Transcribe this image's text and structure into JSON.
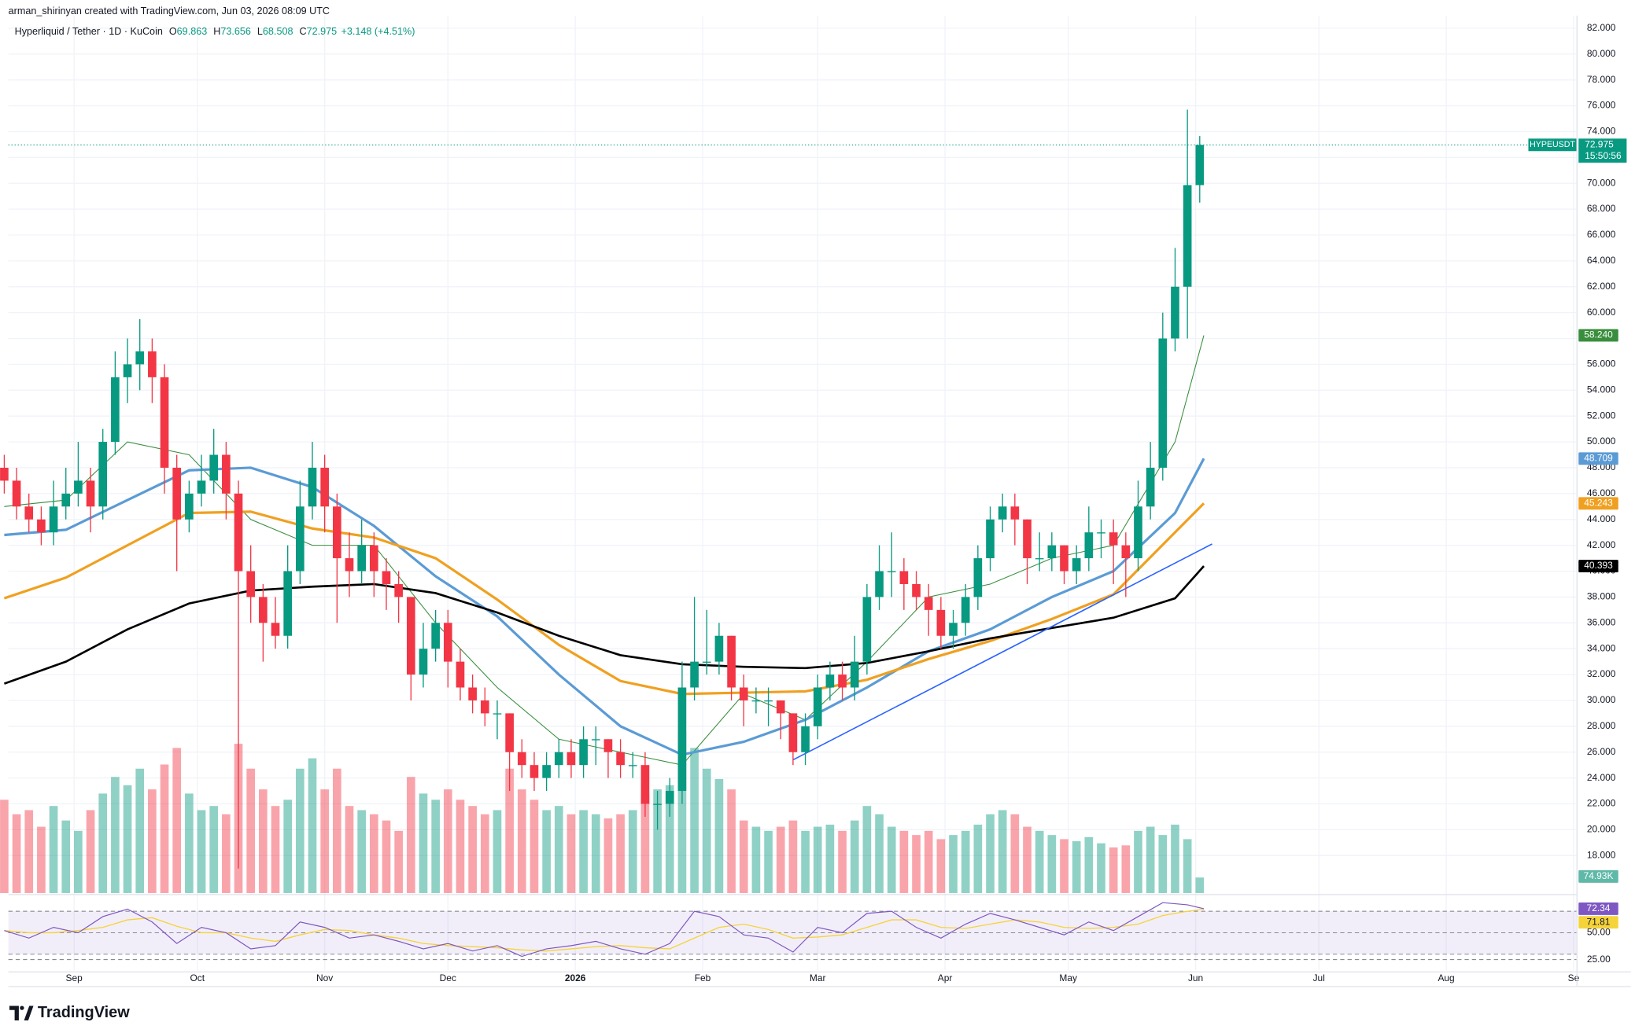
{
  "header": {
    "credit": "arman_shirinyan created with TradingView.com, Jun 03, 2026 08:09 UTC",
    "symbol": "Hyperliquid / Tether · 1D · KuCoin",
    "ohlc": [
      {
        "label": "O",
        "value": 69.863
      },
      {
        "label": "H",
        "value": 73.656
      },
      {
        "label": "L",
        "value": 68.508
      },
      {
        "label": "C",
        "value": 72.975
      }
    ],
    "change": "+3.148 (+4.51%)"
  },
  "chart_data": {
    "type": "candlestick",
    "symbol_name": "HYPEUSDT",
    "countdown": "15:50:56",
    "up_color": "#089981",
    "down_color": "#f23645",
    "x": [
      0,
      3,
      6,
      9,
      12,
      15,
      18,
      21,
      24,
      27,
      30,
      33,
      36,
      39,
      42,
      45,
      48,
      51,
      54,
      57,
      60,
      63,
      66,
      69,
      72,
      75,
      78,
      81,
      84,
      87,
      90,
      93,
      96,
      99,
      102,
      105,
      108,
      111,
      114,
      117,
      120,
      123,
      126,
      129,
      132,
      135,
      138,
      141,
      144,
      147,
      150,
      153,
      156,
      159,
      162,
      165,
      168,
      171,
      174,
      177,
      180,
      183,
      186,
      189,
      192,
      195,
      198,
      201,
      204,
      207,
      210,
      213,
      216,
      219,
      222,
      225,
      228,
      231,
      234,
      237,
      240,
      243,
      246,
      249,
      252,
      255,
      258,
      261,
      264,
      267,
      270,
      273,
      276,
      279,
      282,
      285,
      288,
      291
    ],
    "candles": [
      [
        48,
        49,
        46,
        47
      ],
      [
        47,
        48,
        44,
        45
      ],
      [
        45,
        46,
        43,
        44
      ],
      [
        44,
        45,
        42,
        43
      ],
      [
        43,
        47,
        42,
        45
      ],
      [
        45,
        48,
        44,
        46
      ],
      [
        46,
        50,
        45,
        47
      ],
      [
        47,
        48,
        43,
        45
      ],
      [
        45,
        51,
        44,
        50
      ],
      [
        50,
        57,
        49,
        55
      ],
      [
        55,
        58,
        53,
        56
      ],
      [
        56,
        59.5,
        54,
        57
      ],
      [
        57,
        58,
        53,
        55
      ],
      [
        55,
        56,
        46,
        48
      ],
      [
        48,
        49,
        40,
        44
      ],
      [
        44,
        47,
        43,
        46
      ],
      [
        46,
        49,
        45,
        47
      ],
      [
        47,
        51,
        46,
        49
      ],
      [
        49,
        50,
        44,
        46
      ],
      [
        46,
        47,
        17,
        40
      ],
      [
        40,
        42,
        36,
        38
      ],
      [
        38,
        39,
        33,
        36
      ],
      [
        36,
        38,
        34,
        35
      ],
      [
        35,
        42,
        34,
        40
      ],
      [
        40,
        47,
        39,
        45
      ],
      [
        45,
        50,
        44,
        48
      ],
      [
        48,
        49,
        43,
        45
      ],
      [
        45,
        46,
        36,
        41
      ],
      [
        41,
        43,
        38,
        40
      ],
      [
        40,
        44,
        39,
        42
      ],
      [
        42,
        43,
        38,
        40
      ],
      [
        40,
        41,
        37,
        39
      ],
      [
        39,
        40,
        36,
        38
      ],
      [
        38,
        38,
        30,
        32
      ],
      [
        32,
        36,
        31,
        34
      ],
      [
        34,
        37,
        33,
        36
      ],
      [
        36,
        37,
        31,
        33
      ],
      [
        33,
        34,
        30,
        31
      ],
      [
        31,
        32,
        29,
        30
      ],
      [
        30,
        31,
        28,
        29
      ],
      [
        29,
        30,
        27,
        29
      ],
      [
        29,
        29,
        23,
        26
      ],
      [
        26,
        27,
        24,
        25
      ],
      [
        25,
        26,
        23,
        24
      ],
      [
        24,
        26,
        23,
        25
      ],
      [
        25,
        27,
        24,
        26
      ],
      [
        26,
        27,
        24,
        25
      ],
      [
        25,
        28,
        24,
        27
      ],
      [
        27,
        28,
        25,
        27
      ],
      [
        27,
        27,
        24,
        26
      ],
      [
        26,
        27,
        24,
        25
      ],
      [
        25,
        26,
        24,
        25
      ],
      [
        25,
        26,
        21,
        22
      ],
      [
        22,
        23,
        20,
        22
      ],
      [
        22,
        24,
        21,
        23
      ],
      [
        23,
        33,
        22,
        31
      ],
      [
        31,
        38,
        30,
        33
      ],
      [
        33,
        37,
        32,
        33
      ],
      [
        33,
        36,
        32,
        35
      ],
      [
        35,
        35,
        30,
        31
      ],
      [
        31,
        32,
        28,
        30
      ],
      [
        30,
        31,
        29,
        30
      ],
      [
        30,
        31,
        28,
        30
      ],
      [
        30,
        30,
        27,
        29
      ],
      [
        29,
        29,
        25,
        26
      ],
      [
        26,
        29,
        25,
        28
      ],
      [
        28,
        32,
        27,
        31
      ],
      [
        31,
        33,
        30,
        32
      ],
      [
        32,
        33,
        30,
        31
      ],
      [
        31,
        35,
        30,
        33
      ],
      [
        33,
        39,
        32,
        38
      ],
      [
        38,
        42,
        37,
        40
      ],
      [
        40,
        43,
        38,
        40
      ],
      [
        40,
        41,
        37,
        39
      ],
      [
        39,
        40,
        37,
        38
      ],
      [
        38,
        39,
        35,
        37
      ],
      [
        37,
        38,
        34,
        35
      ],
      [
        35,
        37,
        34,
        36
      ],
      [
        36,
        39,
        35,
        38
      ],
      [
        38,
        42,
        37,
        41
      ],
      [
        41,
        45,
        40,
        44
      ],
      [
        44,
        46,
        43,
        45
      ],
      [
        45,
        46,
        42,
        44
      ],
      [
        44,
        44,
        39,
        41
      ],
      [
        41,
        43,
        40,
        41
      ],
      [
        41,
        43,
        40,
        42
      ],
      [
        42,
        42,
        39,
        40
      ],
      [
        40,
        42,
        39,
        41
      ],
      [
        41,
        45,
        40,
        43
      ],
      [
        43,
        44,
        41,
        43
      ],
      [
        43,
        44,
        39,
        42
      ],
      [
        42,
        43,
        38,
        41
      ],
      [
        41,
        47,
        40,
        45
      ],
      [
        45,
        50,
        44,
        48
      ],
      [
        48,
        60,
        47,
        58
      ],
      [
        58,
        65,
        57,
        62
      ],
      [
        62,
        75.7,
        58,
        69.863
      ],
      [
        69.863,
        73.656,
        68.508,
        72.975
      ]
    ],
    "xlim": [
      1,
      382.7
    ],
    "xticks": [
      {
        "value": 17,
        "label": "Sep"
      },
      {
        "value": 47,
        "label": "Oct"
      },
      {
        "value": 78,
        "label": "Nov"
      },
      {
        "value": 108,
        "label": "Dec"
      },
      {
        "value": 139,
        "label": "2026"
      },
      {
        "value": 170,
        "label": "Feb"
      },
      {
        "value": 198,
        "label": "Mar"
      },
      {
        "value": 229,
        "label": "Apr"
      },
      {
        "value": 259,
        "label": "May"
      },
      {
        "value": 290,
        "label": "Jun"
      },
      {
        "value": 320,
        "label": "Jul"
      },
      {
        "value": 351,
        "label": "Aug"
      },
      {
        "value": 382,
        "label": "Se"
      }
    ],
    "ylim": [
      15.1,
      82.97
    ],
    "yticks": [
      {
        "value": 18,
        "label": "18.000"
      },
      {
        "value": 20,
        "label": "20.000"
      },
      {
        "value": 22,
        "label": "22.000"
      },
      {
        "value": 24,
        "label": "24.000"
      },
      {
        "value": 26,
        "label": "26.000"
      },
      {
        "value": 28,
        "label": "28.000"
      },
      {
        "value": 30,
        "label": "30.000"
      },
      {
        "value": 32,
        "label": "32.000"
      },
      {
        "value": 34,
        "label": "34.000"
      },
      {
        "value": 36,
        "label": "36.000"
      },
      {
        "value": 38,
        "label": "38.000"
      },
      {
        "value": 40,
        "label": "40.000"
      },
      {
        "value": 42,
        "label": "42.000"
      },
      {
        "value": 44,
        "label": "44.000"
      },
      {
        "value": 46,
        "label": "46.000"
      },
      {
        "value": 48,
        "label": "48.000"
      },
      {
        "value": 50,
        "label": "50.000"
      },
      {
        "value": 52,
        "label": "52.000"
      },
      {
        "value": 54,
        "label": "54.000"
      },
      {
        "value": 56,
        "label": "56.000"
      },
      {
        "value": 58,
        "label": "58.000"
      },
      {
        "value": 60,
        "label": "60.000"
      },
      {
        "value": 62,
        "label": "62.000"
      },
      {
        "value": 64,
        "label": "64.000"
      },
      {
        "value": 66,
        "label": "66.000"
      },
      {
        "value": 68,
        "label": "68.000"
      },
      {
        "value": 70,
        "label": "70.000"
      },
      {
        "value": 72,
        "label": "72.000"
      },
      {
        "value": 74,
        "label": "74.000"
      },
      {
        "value": 76,
        "label": "76.000"
      },
      {
        "value": 78,
        "label": "78.000"
      },
      {
        "value": 80,
        "label": "80.000"
      },
      {
        "value": 82,
        "label": "82.000"
      }
    ],
    "grid": true,
    "volume": {
      "ylim": [
        0,
        1300
      ],
      "values": [
        450,
        380,
        400,
        320,
        420,
        350,
        300,
        400,
        480,
        560,
        520,
        600,
        500,
        620,
        700,
        480,
        400,
        420,
        380,
        720,
        600,
        500,
        420,
        450,
        600,
        650,
        500,
        600,
        420,
        400,
        380,
        350,
        300,
        560,
        480,
        450,
        500,
        450,
        420,
        380,
        400,
        600,
        500,
        450,
        400,
        420,
        380,
        400,
        380,
        360,
        380,
        400,
        480,
        500,
        520,
        780,
        700,
        600,
        550,
        500,
        350,
        320,
        300,
        320,
        350,
        300,
        320,
        330,
        300,
        350,
        420,
        380,
        320,
        300,
        280,
        300,
        260,
        280,
        300,
        330,
        380,
        400,
        380,
        320,
        300,
        280,
        260,
        250,
        270,
        240,
        220,
        230,
        300,
        320,
        280,
        330,
        260,
        74.93
      ],
      "value_label": "74.93K",
      "color": "#089981"
    },
    "ma_x": [
      0,
      15,
      30,
      45,
      60,
      75,
      90,
      105,
      120,
      135,
      150,
      165,
      180,
      195,
      210,
      225,
      240,
      255,
      270,
      285,
      292
    ],
    "ma": [
      {
        "color": "#388e3c",
        "width": 0.8,
        "values": [
          45,
          45.5,
          50,
          49,
          44,
          42,
          42,
          36,
          31,
          27,
          26,
          25,
          30.5,
          28.5,
          33,
          38,
          39,
          41,
          42,
          50,
          58.24
        ],
        "value_label": "58.240"
      },
      {
        "color": "#5b9bd5",
        "width": 2.4,
        "values": [
          42.8,
          43.2,
          45.5,
          47.8,
          48,
          46.5,
          43.5,
          39.6,
          36.5,
          32,
          28,
          25.8,
          26.8,
          28.5,
          31,
          33.8,
          35.5,
          38,
          40,
          44.5,
          48.709
        ],
        "value_label": "48.709"
      },
      {
        "color": "#f0a020",
        "width": 2.4,
        "values": [
          37.9,
          39.5,
          42,
          44.5,
          44.6,
          43.3,
          42.6,
          41,
          37.8,
          34.3,
          31.5,
          30.5,
          30.6,
          30.7,
          31.6,
          33.2,
          34.6,
          36.3,
          38.2,
          43,
          45.243
        ],
        "value_label": "45.243"
      },
      {
        "color": "#000000",
        "width": 2,
        "values": [
          31.3,
          33,
          35.5,
          37.5,
          38.5,
          38.8,
          39,
          38.3,
          36.8,
          35,
          33.5,
          32.8,
          32.6,
          32.5,
          32.9,
          33.8,
          34.8,
          35.6,
          36.4,
          37.9,
          40.393
        ],
        "value_label": "40.393"
      }
    ],
    "trendline": {
      "color": "#2962ff",
      "x": [
        192,
        294
      ],
      "values": [
        25.4,
        42.1
      ]
    },
    "rsi": {
      "ylim": [
        15,
        85
      ],
      "yticks": [
        {
          "value": 25,
          "label": "25.00"
        },
        {
          "value": 50,
          "label": "50.00"
        }
      ],
      "bands": [
        30,
        70
      ],
      "x": [
        0,
        6,
        12,
        18,
        24,
        30,
        36,
        42,
        48,
        54,
        60,
        66,
        72,
        78,
        84,
        90,
        96,
        102,
        108,
        114,
        120,
        126,
        132,
        138,
        144,
        150,
        156,
        162,
        168,
        174,
        180,
        186,
        192,
        198,
        204,
        210,
        216,
        222,
        228,
        234,
        240,
        246,
        252,
        258,
        264,
        270,
        276,
        282,
        288,
        292
      ],
      "series": [
        {
          "color": "#7e57c2",
          "values": [
            52,
            45,
            55,
            50,
            65,
            72,
            60,
            40,
            55,
            50,
            35,
            38,
            60,
            55,
            45,
            48,
            42,
            35,
            40,
            33,
            38,
            28,
            35,
            38,
            42,
            35,
            30,
            40,
            70,
            65,
            48,
            45,
            32,
            55,
            50,
            68,
            70,
            55,
            45,
            58,
            68,
            62,
            55,
            48,
            60,
            52,
            65,
            78,
            76,
            72.34
          ]
        },
        {
          "color": "#f5d33b",
          "values": [
            52,
            50,
            50,
            52,
            55,
            62,
            64,
            56,
            50,
            50,
            45,
            42,
            48,
            53,
            52,
            48,
            45,
            40,
            38,
            37,
            36,
            34,
            33,
            35,
            37,
            38,
            36,
            35,
            45,
            55,
            58,
            53,
            45,
            46,
            48,
            55,
            62,
            62,
            55,
            54,
            58,
            62,
            60,
            55,
            54,
            55,
            58,
            66,
            70,
            71.81
          ]
        }
      ]
    }
  },
  "footer": {
    "brand": "TradingView"
  }
}
